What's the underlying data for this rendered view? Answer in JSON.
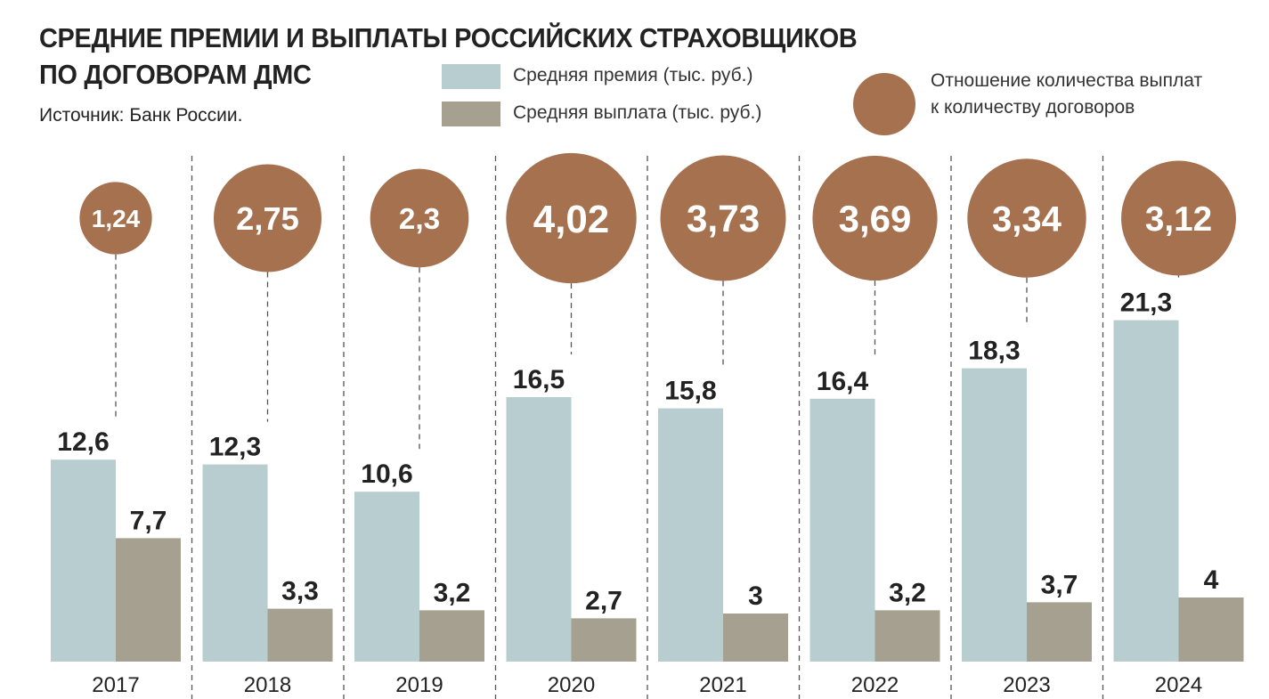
{
  "title_line1": "СРЕДНИЕ ПРЕМИИ И ВЫПЛАТЫ РОССИЙСКИХ СТРАХОВЩИКОВ",
  "title_line2": "ПО ДОГОВОРАМ ДМС",
  "source": "Источник: Банк России.",
  "chart_data": {
    "type": "bar",
    "categories": [
      "2017",
      "2018",
      "2019",
      "2020",
      "2021",
      "2022",
      "2023",
      "2024"
    ],
    "series": [
      {
        "name": "Средняя премия (тыс. руб.)",
        "color": "#b8cdd0",
        "values": [
          12.6,
          12.3,
          10.6,
          16.5,
          15.8,
          16.4,
          18.3,
          21.3
        ],
        "labels": [
          "12,6",
          "12,3",
          "10,6",
          "16,5",
          "15,8",
          "16,4",
          "18,3",
          "21,3"
        ]
      },
      {
        "name": "Средняя выплата (тыс. руб.)",
        "color": "#a5a08f",
        "values": [
          7.7,
          3.3,
          3.2,
          2.7,
          3,
          3.2,
          3.7,
          4
        ],
        "labels": [
          "7,7",
          "3,3",
          "3,2",
          "2,7",
          "3",
          "3,2",
          "3,7",
          "4"
        ]
      }
    ],
    "bubbles": {
      "name_line1": "Отношение количества выплат",
      "name_line2": "к количеству договоров",
      "color": "#a5714f",
      "values": [
        1.24,
        2.75,
        2.3,
        4.02,
        3.73,
        3.69,
        3.34,
        3.12
      ],
      "labels": [
        "1,24",
        "2,75",
        "2,3",
        "4,02",
        "3,73",
        "3,69",
        "3,34",
        "3,12"
      ]
    },
    "ylim": [
      0,
      22
    ]
  }
}
